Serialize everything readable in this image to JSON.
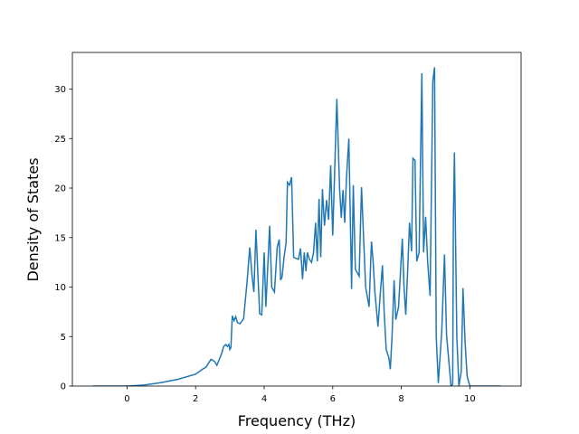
{
  "chart_data": {
    "type": "line",
    "xlabel": "Frequency (THz)",
    "ylabel": "Density of States",
    "color": "#1f77b4",
    "x": [
      -1,
      0,
      0.5,
      1,
      1.5,
      2,
      2.2,
      2.3,
      2.45,
      2.55,
      2.62,
      2.75,
      2.82,
      2.88,
      2.93,
      2.97,
      3.0,
      3.03,
      3.07,
      3.12,
      3.17,
      3.22,
      3.3,
      3.4,
      3.5,
      3.58,
      3.65,
      3.7,
      3.76,
      3.82,
      3.87,
      3.93,
      4.0,
      4.05,
      4.16,
      4.22,
      4.3,
      4.38,
      4.44,
      4.48,
      4.52,
      4.58,
      4.64,
      4.68,
      4.74,
      4.8,
      4.86,
      5.0,
      5.06,
      5.12,
      5.17,
      5.22,
      5.26,
      5.32,
      5.38,
      5.44,
      5.5,
      5.55,
      5.6,
      5.65,
      5.7,
      5.76,
      5.82,
      5.88,
      5.94,
      6.0,
      6.12,
      6.2,
      6.25,
      6.3,
      6.35,
      6.4,
      6.47,
      6.55,
      6.6,
      6.66,
      6.77,
      6.84,
      6.9,
      6.96,
      7.06,
      7.13,
      7.18,
      7.23,
      7.32,
      7.38,
      7.45,
      7.5,
      7.56,
      7.64,
      7.68,
      7.73,
      7.79,
      7.84,
      7.92,
      8.03,
      8.08,
      8.13,
      8.19,
      8.24,
      8.3,
      8.34,
      8.4,
      8.45,
      8.52,
      8.6,
      8.65,
      8.71,
      8.77,
      8.84,
      8.92,
      8.97,
      9.02,
      9.08,
      9.18,
      9.26,
      9.32,
      9.38,
      9.45,
      9.5,
      9.52,
      9.55,
      9.62,
      9.68,
      9.75,
      9.8,
      9.86,
      9.92,
      10.0,
      10.9
    ],
    "values": [
      0,
      0,
      0.1,
      0.35,
      0.7,
      1.2,
      1.7,
      1.9,
      2.7,
      2.5,
      2.1,
      3.2,
      4.0,
      4.2,
      4.0,
      4.2,
      3.7,
      3.9,
      7.1,
      6.6,
      7.0,
      6.4,
      6.3,
      6.8,
      10.5,
      14,
      11,
      9.5,
      15.8,
      11,
      7.3,
      7.2,
      13.5,
      8,
      16.2,
      10,
      9.5,
      14,
      14.8,
      10.7,
      11,
      13,
      14.5,
      20.6,
      20.3,
      21.1,
      13,
      12.8,
      13.9,
      10.8,
      13.5,
      11.6,
      13.5,
      12.8,
      12.5,
      13.5,
      16.5,
      12.6,
      18.9,
      13,
      19.9,
      16.2,
      18.8,
      16.8,
      22.3,
      15.2,
      29,
      20,
      17,
      19.8,
      16.5,
      21,
      25,
      9.8,
      20.3,
      11.8,
      11.1,
      20.1,
      15,
      10,
      8,
      14.6,
      12.5,
      9.5,
      6,
      9,
      12.2,
      7.5,
      3.7,
      2.8,
      1.7,
      5,
      10.7,
      6.7,
      8,
      14.9,
      10,
      7.2,
      12,
      16.5,
      13.6,
      23,
      22.8,
      12.6,
      13.5,
      31.6,
      13.5,
      17.1,
      12.5,
      9.1,
      30.8,
      32.2,
      5,
      0.3,
      5.5,
      13.3,
      5.2,
      2.8,
      0,
      0.2,
      17.1,
      23.6,
      5,
      0,
      1.5,
      9.9,
      4.5,
      1,
      0,
      0
    ],
    "xlim": [
      -1.595,
      11.495
    ],
    "xticks": [
      0,
      2,
      4,
      6,
      8,
      10
    ],
    "ylim": [
      0,
      33.7
    ],
    "yticks": [
      0,
      5,
      10,
      15,
      20,
      25,
      30
    ]
  }
}
